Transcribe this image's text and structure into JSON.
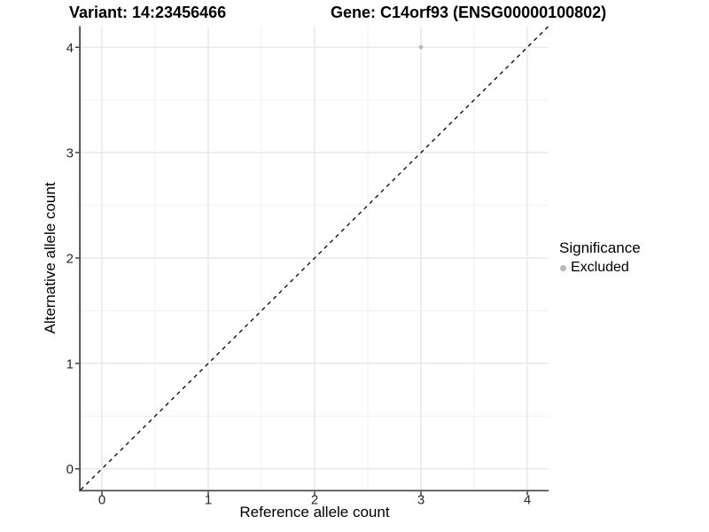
{
  "header": {
    "variant_title": "Variant: 14:23456466",
    "gene_title": "Gene: C14orf93 (ENSG00000100802)"
  },
  "legend": {
    "title": "Significance",
    "items": [
      {
        "label": "Excluded",
        "color": "#b8b8b8"
      }
    ]
  },
  "chart_data": {
    "type": "scatter",
    "title": "Variant: 14:23456466 — Gene: C14orf93 (ENSG00000100802)",
    "xlabel": "Reference allele count",
    "ylabel": "Alternative allele count",
    "xlim": [
      -0.2,
      4.2
    ],
    "ylim": [
      -0.2,
      4.2
    ],
    "x_ticks": [
      0,
      1,
      2,
      3,
      4
    ],
    "y_ticks": [
      0,
      1,
      2,
      3,
      4
    ],
    "x_minor_ticks": [
      0.5,
      1.5,
      2.5,
      3.5
    ],
    "y_minor_ticks": [
      0.5,
      1.5,
      2.5,
      3.5
    ],
    "grid": "on",
    "legend_position": "right",
    "points": [
      {
        "x": 3,
        "y": 4,
        "series": "Excluded",
        "color": "#b8b8b8"
      }
    ],
    "reference_line": {
      "slope": 1,
      "intercept": 0,
      "style": "dashed",
      "color": "#000000"
    }
  },
  "style_colors": {
    "grid_major": "#e4e4e4",
    "grid_minor": "#f1f1f1",
    "axis_line": "#4a4a4a",
    "tick_mark": "#333333",
    "tick_label": "#262626"
  }
}
